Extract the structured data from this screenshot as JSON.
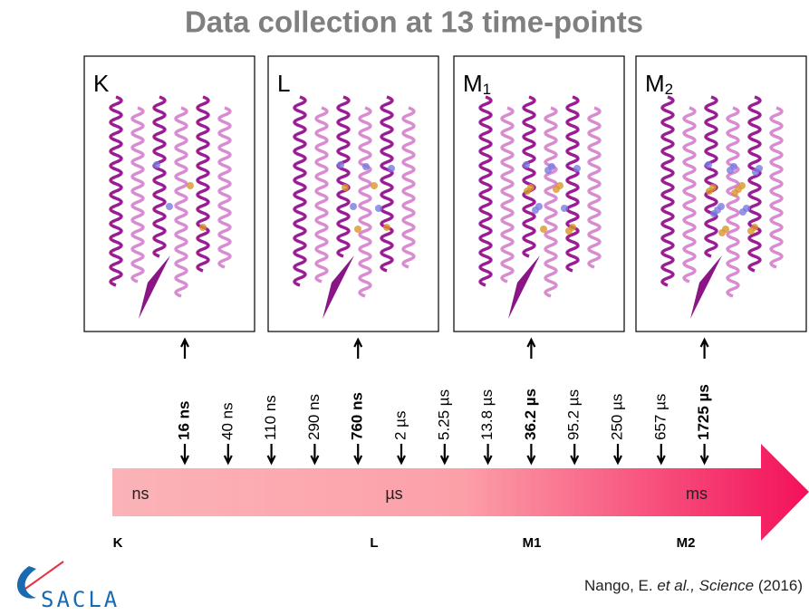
{
  "title": "Data collection at 13 time-points",
  "panels": [
    {
      "label": "K"
    },
    {
      "label": "L"
    },
    {
      "label": "M",
      "subscript": "1"
    },
    {
      "label": "M",
      "subscript": "2"
    }
  ],
  "timepoints": [
    {
      "label": "16 ns",
      "highlight": true
    },
    {
      "label": "40 ns",
      "highlight": false
    },
    {
      "label": "110 ns",
      "highlight": false
    },
    {
      "label": "290 ns",
      "highlight": false
    },
    {
      "label": "760 ns",
      "highlight": true
    },
    {
      "label": "2 µs",
      "highlight": false
    },
    {
      "label": "5.25 µs",
      "highlight": false
    },
    {
      "label": "13.8 µs",
      "highlight": false
    },
    {
      "label": "36.2 µs",
      "highlight": true
    },
    {
      "label": "95.2 µs",
      "highlight": false
    },
    {
      "label": "250 µs",
      "highlight": false
    },
    {
      "label": "657 µs",
      "highlight": false
    },
    {
      "label": "1725 µs",
      "highlight": true
    }
  ],
  "scale_labels": [
    "ns",
    "µs",
    "ms"
  ],
  "intermediates": [
    "K",
    "L",
    "M1",
    "M2"
  ],
  "citation": {
    "authors": "Nango, E.",
    "italic": "et al., Science",
    "year": "(2016)"
  },
  "logo": "SACLA"
}
